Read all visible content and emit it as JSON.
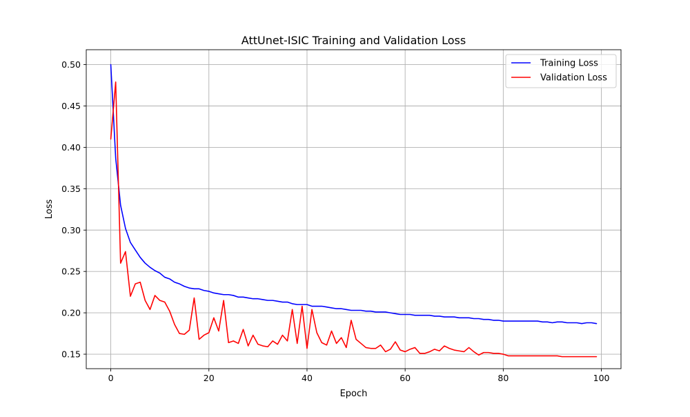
{
  "chart_data": {
    "type": "line",
    "title": "AttUnet-ISIC Training and Validation Loss",
    "xlabel": "Epoch",
    "ylabel": "Loss",
    "xlim": [
      -5,
      104
    ],
    "ylim": [
      0.1325,
      0.518
    ],
    "x_ticks": [
      0,
      20,
      40,
      60,
      80,
      100
    ],
    "x_tick_labels": [
      "0",
      "20",
      "40",
      "60",
      "80",
      "100"
    ],
    "y_ticks": [
      0.15,
      0.2,
      0.25,
      0.3,
      0.35,
      0.4,
      0.45,
      0.5
    ],
    "y_tick_labels": [
      "0.15",
      "0.20",
      "0.25",
      "0.30",
      "0.35",
      "0.40",
      "0.45",
      "0.50"
    ],
    "grid": true,
    "legend_position": "top-right",
    "series": [
      {
        "name": "Training Loss",
        "color": "#0000ff",
        "x_start": 0,
        "values": [
          0.5,
          0.387,
          0.33,
          0.302,
          0.285,
          0.276,
          0.267,
          0.26,
          0.255,
          0.251,
          0.248,
          0.243,
          0.241,
          0.237,
          0.235,
          0.232,
          0.23,
          0.229,
          0.229,
          0.227,
          0.226,
          0.224,
          0.223,
          0.222,
          0.222,
          0.221,
          0.219,
          0.219,
          0.218,
          0.217,
          0.217,
          0.216,
          0.215,
          0.215,
          0.214,
          0.213,
          0.213,
          0.211,
          0.21,
          0.21,
          0.21,
          0.208,
          0.208,
          0.208,
          0.207,
          0.206,
          0.205,
          0.205,
          0.204,
          0.203,
          0.203,
          0.203,
          0.202,
          0.202,
          0.201,
          0.201,
          0.201,
          0.2,
          0.199,
          0.198,
          0.198,
          0.198,
          0.197,
          0.197,
          0.197,
          0.197,
          0.196,
          0.196,
          0.195,
          0.195,
          0.195,
          0.194,
          0.194,
          0.194,
          0.193,
          0.193,
          0.192,
          0.192,
          0.191,
          0.191,
          0.19,
          0.19,
          0.19,
          0.19,
          0.19,
          0.19,
          0.19,
          0.19,
          0.189,
          0.189,
          0.188,
          0.189,
          0.189,
          0.188,
          0.188,
          0.188,
          0.187,
          0.188,
          0.188,
          0.187
        ]
      },
      {
        "name": "Validation Loss",
        "color": "#ff0000",
        "x_start": 0,
        "values": [
          0.41,
          0.479,
          0.26,
          0.274,
          0.22,
          0.235,
          0.237,
          0.215,
          0.204,
          0.221,
          0.215,
          0.213,
          0.202,
          0.186,
          0.175,
          0.174,
          0.179,
          0.218,
          0.168,
          0.173,
          0.176,
          0.194,
          0.178,
          0.215,
          0.164,
          0.166,
          0.163,
          0.18,
          0.16,
          0.173,
          0.162,
          0.16,
          0.159,
          0.166,
          0.162,
          0.173,
          0.166,
          0.204,
          0.163,
          0.208,
          0.157,
          0.204,
          0.176,
          0.164,
          0.161,
          0.178,
          0.163,
          0.17,
          0.158,
          0.191,
          0.168,
          0.163,
          0.158,
          0.157,
          0.157,
          0.161,
          0.153,
          0.156,
          0.165,
          0.155,
          0.153,
          0.156,
          0.158,
          0.151,
          0.151,
          0.153,
          0.156,
          0.154,
          0.16,
          0.157,
          0.155,
          0.154,
          0.153,
          0.158,
          0.153,
          0.149,
          0.152,
          0.152,
          0.151,
          0.151,
          0.15,
          0.148,
          0.148,
          0.148,
          0.148,
          0.148,
          0.148,
          0.148,
          0.148,
          0.148,
          0.148,
          0.148,
          0.147,
          0.147,
          0.147,
          0.147,
          0.147,
          0.147,
          0.147,
          0.147
        ]
      }
    ]
  }
}
